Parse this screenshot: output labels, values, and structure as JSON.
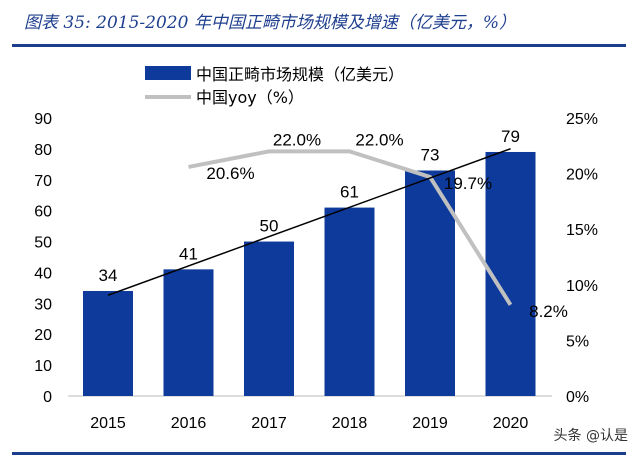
{
  "chart_data": {
    "type": "bar+line",
    "title": "图表 35: 2015-2020 年中国正畸市场规模及增速（亿美元，%）",
    "categories": [
      "2015",
      "2016",
      "2017",
      "2018",
      "2019",
      "2020"
    ],
    "series": [
      {
        "name": "中国正畸市场规模（亿美元）",
        "type": "bar",
        "axis": "left",
        "values": [
          34,
          41,
          50,
          61,
          73,
          79
        ],
        "labels": [
          "34",
          "41",
          "50",
          "61",
          "73",
          "79"
        ],
        "color": "#0d3a9b"
      },
      {
        "name": "中国yoy（%）",
        "type": "line",
        "axis": "right",
        "values": [
          null,
          20.6,
          22.0,
          22.0,
          19.7,
          8.2
        ],
        "labels": [
          "",
          "20.6%",
          "22.0%",
          "22.0%",
          "19.7%",
          "8.2%"
        ],
        "color": "#c0c0c0"
      }
    ],
    "trendline": {
      "type": "linear",
      "series": "中国正畸市场规模（亿美元）",
      "color": "#000000"
    },
    "ylim_left": [
      0,
      90
    ],
    "yticks_left": [
      "0",
      "10",
      "20",
      "30",
      "40",
      "50",
      "60",
      "70",
      "80",
      "90"
    ],
    "ylim_right": [
      0,
      25
    ],
    "yticks_right": [
      "0%",
      "5%",
      "10%",
      "15%",
      "20%",
      "25%"
    ],
    "grid": false,
    "legend": "top-center"
  },
  "watermark": "头条 @认是"
}
